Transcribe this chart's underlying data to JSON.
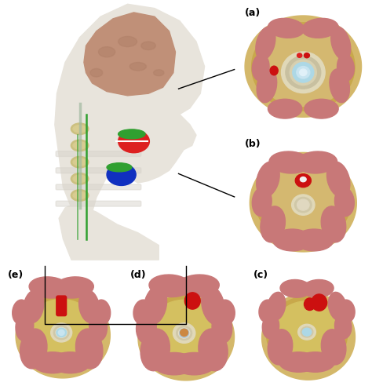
{
  "figure_bg": "#ffffff",
  "border_color": "#000000",
  "line_color": "#000000",
  "skin_outer": "#d4ba6a",
  "skin_mid": "#c8a84b",
  "skin_inner": "#d4c070",
  "muscle_color": "#c87878",
  "muscle_dark": "#b86060",
  "bone_color": "#e0d8b8",
  "bone_dark": "#c8c0a0",
  "spinal_cord_color": "#add8e6",
  "spinal_inner": "#c8e8f8",
  "blood_color": "#cc1010",
  "panel_labels": [
    "(a)",
    "(b)",
    "(c)",
    "(d)",
    "(e)"
  ],
  "label_fontsize": 9,
  "head_bg": "#f0ede8",
  "brain_color": "#c09080",
  "spine_color": "#d0c080",
  "green_line": "#30a030",
  "elec_red": "#dd2020",
  "elec_green": "#30a030",
  "elec_blue": "#1030c0",
  "orange_color": "#cc8840",
  "white_color": "#f0f0f0",
  "grey_color": "#b0b0b0"
}
